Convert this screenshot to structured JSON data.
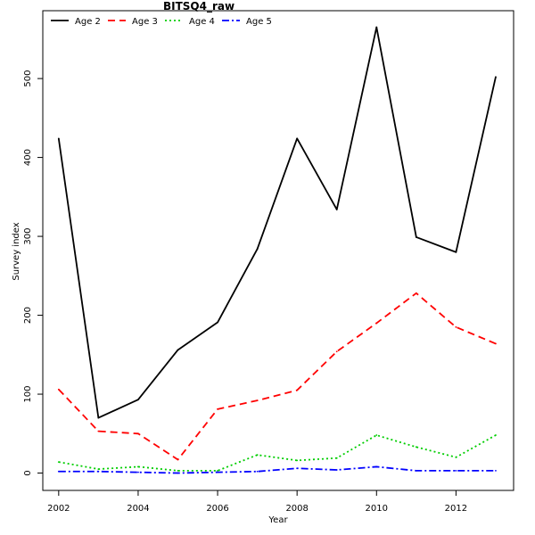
{
  "chart_data": {
    "type": "line",
    "title": "BITSQ4_raw",
    "xlabel": "Year",
    "ylabel": "Survey index",
    "x": [
      2002,
      2003,
      2004,
      2005,
      2006,
      2007,
      2008,
      2009,
      2010,
      2011,
      2012,
      2013
    ],
    "xlim": [
      2001.6,
      2013.45
    ],
    "ylim": [
      -22,
      586
    ],
    "xticks": [
      2002,
      2004,
      2006,
      2008,
      2010,
      2012
    ],
    "yticks": [
      0,
      100,
      200,
      300,
      400,
      500
    ],
    "legend_position": "top-left",
    "grid": false,
    "series": [
      {
        "name": "Age 2",
        "color": "#000000",
        "dash": "solid",
        "values": [
          424,
          70,
          93,
          156,
          191,
          284,
          424,
          334,
          565,
          299,
          280,
          502
        ]
      },
      {
        "name": "Age 3",
        "color": "#ff0000",
        "dash": "dashed",
        "values": [
          106,
          53,
          50,
          17,
          81,
          92,
          105,
          154,
          190,
          228,
          185,
          164
        ]
      },
      {
        "name": "Age 4",
        "color": "#00cd00",
        "dash": "dotted",
        "values": [
          14,
          5,
          8,
          3,
          3,
          23,
          16,
          19,
          48,
          33,
          20,
          48
        ]
      },
      {
        "name": "Age 5",
        "color": "#0000ff",
        "dash": "dotdash",
        "values": [
          2,
          2,
          1,
          0,
          1,
          2,
          6,
          4,
          8,
          3,
          3,
          3
        ]
      }
    ]
  }
}
